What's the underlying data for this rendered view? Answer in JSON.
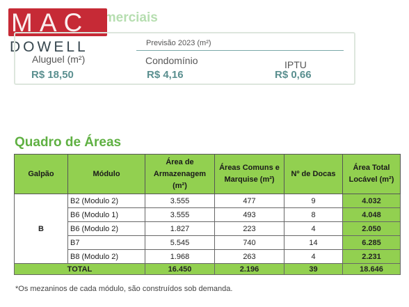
{
  "logo": {
    "line1": "MAC",
    "line2": "DOWELL"
  },
  "condicoes": {
    "title": "Condições Comerciais",
    "previsao": "Previsão 2023 (m²)",
    "aluguel_label": "Aluguel (m²)",
    "aluguel_value": "R$ 18,50",
    "condominio_label": "Condomínio",
    "condominio_value": "R$ 4,16",
    "iptu_label": "IPTU",
    "iptu_value": "R$ 0,66"
  },
  "quadro": {
    "title": "Quadro de Áreas",
    "headers": [
      "Galpão",
      "Módulo",
      "Área de Armazenagem (m²)",
      "Áreas Comuns e Marquise (m²)",
      "Nº de Docas",
      "Área Total Locável (m²)"
    ],
    "galpao": "B",
    "rows": [
      {
        "modulo": "B2 (Modulo 2)",
        "armazenagem": "3.555",
        "comuns": "477",
        "docas": "9",
        "total": "4.032"
      },
      {
        "modulo": "B6 (Modulo 1)",
        "armazenagem": "3.555",
        "comuns": "493",
        "docas": "8",
        "total": "4.048"
      },
      {
        "modulo": "B6 (Modulo 2)",
        "armazenagem": "1.827",
        "comuns": "223",
        "docas": "4",
        "total": "2.050"
      },
      {
        "modulo": "B7",
        "armazenagem": "5.545",
        "comuns": "740",
        "docas": "14",
        "total": "6.285"
      },
      {
        "modulo": "B8 (Modulo 2)",
        "armazenagem": "1.968",
        "comuns": "263",
        "docas": "4",
        "total": "2.231"
      }
    ],
    "total_row": {
      "label": "TOTAL",
      "armazenagem": "16.450",
      "comuns": "2.196",
      "docas": "39",
      "total": "18.646"
    }
  },
  "footnote": "*Os mezaninos de cada módulo, são construídos sob demanda."
}
